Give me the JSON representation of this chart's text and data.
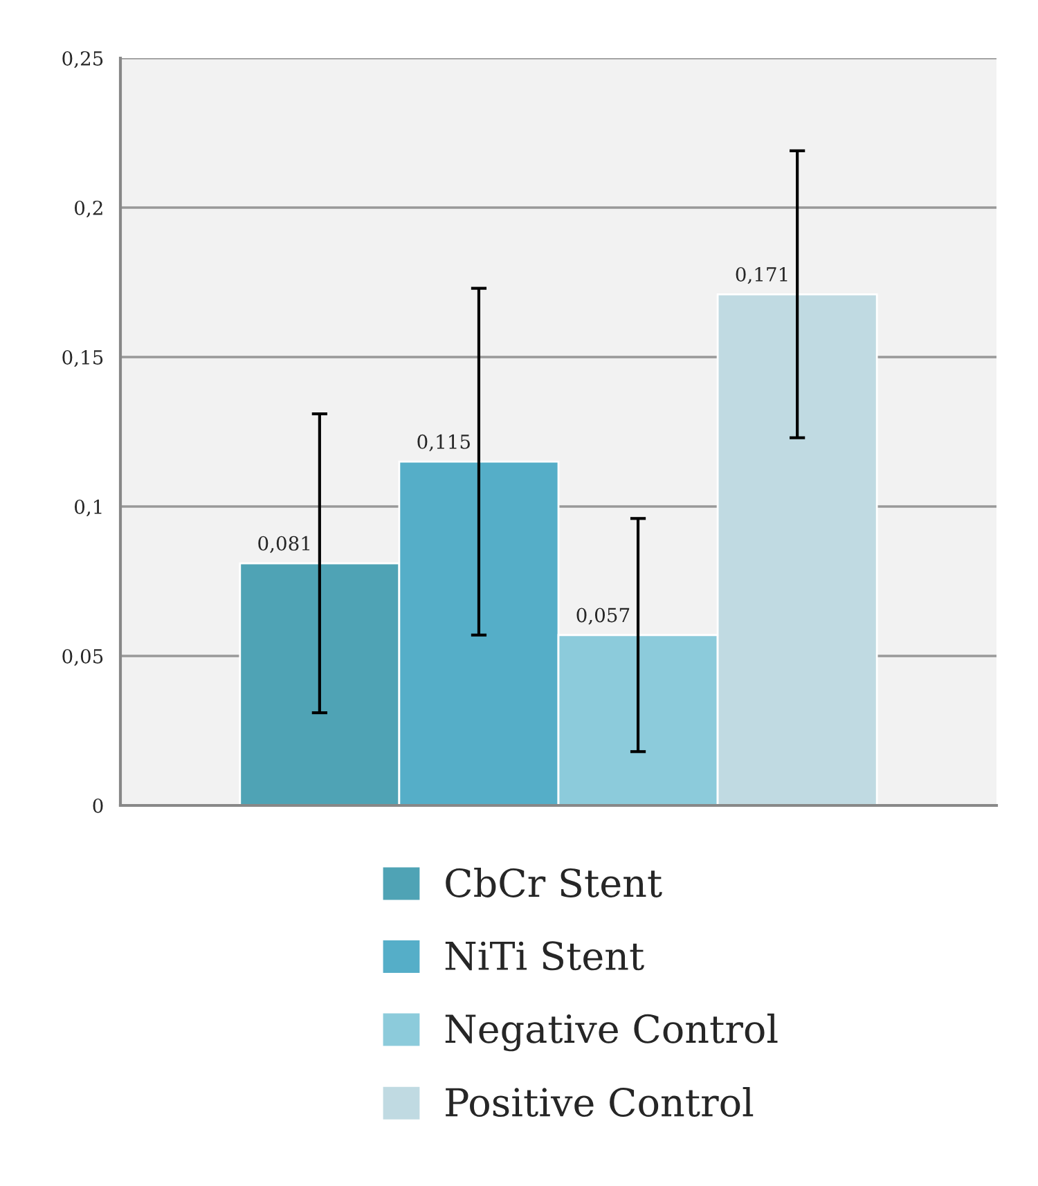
{
  "chart_data": {
    "type": "bar",
    "categories": [
      null
    ],
    "series": [
      {
        "name": "CbCr Stent",
        "color": "#4fa3b5",
        "values": [
          0.081
        ],
        "errors": [
          0.05
        ],
        "value_labels": [
          "0,081"
        ]
      },
      {
        "name": "NiTi Stent",
        "color": "#55aec8",
        "values": [
          0.115
        ],
        "errors": [
          0.058
        ],
        "value_labels": [
          "0,115"
        ]
      },
      {
        "name": "Negative Control",
        "color": "#8ccbdb",
        "values": [
          0.057
        ],
        "errors": [
          0.039
        ],
        "value_labels": [
          "0,057"
        ]
      },
      {
        "name": "Positive Control",
        "color": "#c0dae2",
        "values": [
          0.171
        ],
        "errors": [
          0.048
        ],
        "value_labels": [
          "0,171"
        ]
      }
    ],
    "ylim": [
      0,
      0.25
    ],
    "yticks": [
      {
        "value": 0,
        "label": "0"
      },
      {
        "value": 0.05,
        "label": "0,05"
      },
      {
        "value": 0.1,
        "label": "0,1"
      },
      {
        "value": 0.15,
        "label": "0,15"
      },
      {
        "value": 0.2,
        "label": "0,2"
      },
      {
        "value": 0.25,
        "label": "0,25"
      }
    ],
    "grid": "y",
    "legend": "bottom"
  }
}
